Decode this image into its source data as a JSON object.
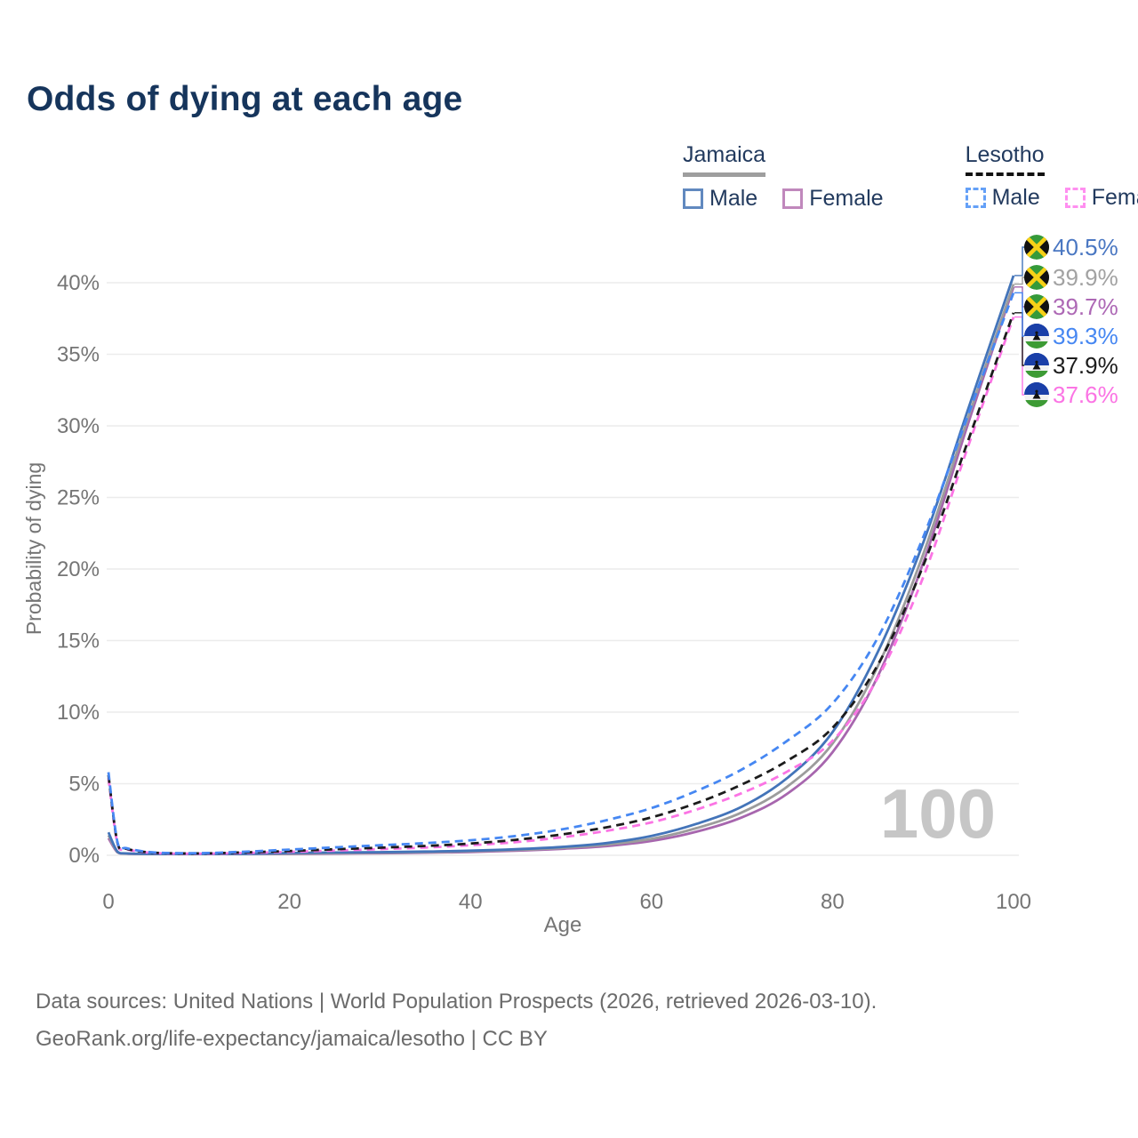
{
  "title": "Odds of dying at each age",
  "legend": {
    "groups": [
      {
        "country": "Jamaica",
        "line_style": "solid",
        "underline_color": "#9e9e9e",
        "items": [
          {
            "label": "Male",
            "color": "#6189bf",
            "dashed": false
          },
          {
            "label": "Female",
            "color": "#c088bc",
            "dashed": false
          }
        ]
      },
      {
        "country": "Lesotho",
        "line_style": "dashed",
        "underline_color": "#111111",
        "items": [
          {
            "label": "Male",
            "color": "#64a0f7",
            "dashed": true
          },
          {
            "label": "Female",
            "color": "#ff8ff0",
            "dashed": true
          }
        ]
      }
    ]
  },
  "chart_data": {
    "type": "line",
    "title": "Odds of dying at each age",
    "xlabel": "Age",
    "ylabel": "Probability of dying",
    "xlim": [
      0,
      100
    ],
    "ylim": [
      0,
      42
    ],
    "x_ticks": [
      0,
      20,
      40,
      60,
      80,
      100
    ],
    "y_ticks": [
      0,
      5,
      10,
      15,
      20,
      25,
      30,
      35,
      40
    ],
    "y_tick_suffix": "%",
    "grid": true,
    "watermark": "100",
    "x": [
      0,
      1,
      2,
      5,
      10,
      15,
      20,
      25,
      30,
      35,
      40,
      45,
      50,
      55,
      60,
      65,
      70,
      75,
      80,
      85,
      90,
      95,
      100
    ],
    "series": [
      {
        "name": "Jamaica Female",
        "country": "jamaica",
        "sex": "female",
        "color": "#a766ae",
        "label_color": "#ad68b5",
        "dashed": false,
        "end_label": "39.7%",
        "end_value": 39.7,
        "label_order": 2,
        "values": [
          1.2,
          0.2,
          0.11,
          0.05,
          0.04,
          0.055,
          0.09,
          0.12,
          0.14,
          0.18,
          0.23,
          0.32,
          0.45,
          0.64,
          1.0,
          1.65,
          2.65,
          4.3,
          7.2,
          12.5,
          20.4,
          30.2,
          39.7
        ]
      },
      {
        "name": "Jamaica Both sexes",
        "country": "jamaica",
        "sex": "both",
        "color": "#9c9c9c",
        "label_color": "#a2a2a2",
        "dashed": false,
        "end_label": "39.9%",
        "end_value": 39.9,
        "label_order": 1,
        "values": [
          1.4,
          0.22,
          0.12,
          0.055,
          0.045,
          0.07,
          0.12,
          0.15,
          0.18,
          0.22,
          0.28,
          0.37,
          0.51,
          0.74,
          1.15,
          1.9,
          3.0,
          4.8,
          7.8,
          13.2,
          21.0,
          30.6,
          39.9
        ]
      },
      {
        "name": "Jamaica Male",
        "country": "jamaica",
        "sex": "male",
        "color": "#4374b9",
        "label_color": "#4a77c2",
        "dashed": false,
        "end_label": "40.5%",
        "end_value": 40.5,
        "label_order": 0,
        "values": [
          1.6,
          0.25,
          0.13,
          0.06,
          0.05,
          0.09,
          0.16,
          0.19,
          0.22,
          0.26,
          0.32,
          0.42,
          0.58,
          0.85,
          1.35,
          2.2,
          3.4,
          5.4,
          8.6,
          14.2,
          21.8,
          31.2,
          40.5
        ]
      },
      {
        "name": "Lesotho Female",
        "country": "lesotho",
        "sex": "female",
        "color": "#fb74e4",
        "label_color": "#fb74e4",
        "dashed": true,
        "end_label": "37.6%",
        "end_value": 37.6,
        "label_order": 5,
        "values": [
          5.4,
          0.8,
          0.42,
          0.16,
          0.11,
          0.16,
          0.24,
          0.33,
          0.43,
          0.54,
          0.7,
          0.92,
          1.25,
          1.7,
          2.3,
          3.2,
          4.35,
          5.85,
          8.0,
          12.4,
          19.4,
          28.6,
          37.6
        ]
      },
      {
        "name": "Lesotho Both sexes",
        "country": "lesotho",
        "sex": "both",
        "color": "#1c1c1c",
        "label_color": "#1c1c1c",
        "dashed": true,
        "end_label": "37.9%",
        "end_value": 37.9,
        "label_order": 4,
        "values": [
          5.6,
          0.85,
          0.45,
          0.18,
          0.13,
          0.2,
          0.3,
          0.42,
          0.53,
          0.65,
          0.82,
          1.08,
          1.45,
          1.95,
          2.65,
          3.65,
          4.95,
          6.6,
          8.9,
          13.3,
          20.2,
          29.0,
          37.9
        ]
      },
      {
        "name": "Lesotho Male",
        "country": "lesotho",
        "sex": "male",
        "color": "#4687f2",
        "label_color": "#4687f2",
        "dashed": true,
        "end_label": "39.3%",
        "end_value": 39.3,
        "label_order": 3,
        "values": [
          5.8,
          0.9,
          0.5,
          0.2,
          0.15,
          0.25,
          0.4,
          0.55,
          0.7,
          0.85,
          1.05,
          1.35,
          1.8,
          2.45,
          3.3,
          4.5,
          6.0,
          8.0,
          10.6,
          15.2,
          22.2,
          30.8,
          39.3
        ]
      }
    ]
  },
  "flags": {
    "jamaica": {
      "green": "#359a3a",
      "gold": "#f7d117",
      "black": "#111111"
    },
    "lesotho": {
      "blue": "#1a3fa8",
      "white": "#f2f2f2",
      "green": "#3d9b35",
      "hat": "#111111"
    }
  },
  "footer": {
    "line1": "Data sources: United Nations | World Population Prospects (2026, retrieved 2026-03-10).",
    "line2": "GeoRank.org/life-expectancy/jamaica/lesotho | CC BY"
  }
}
